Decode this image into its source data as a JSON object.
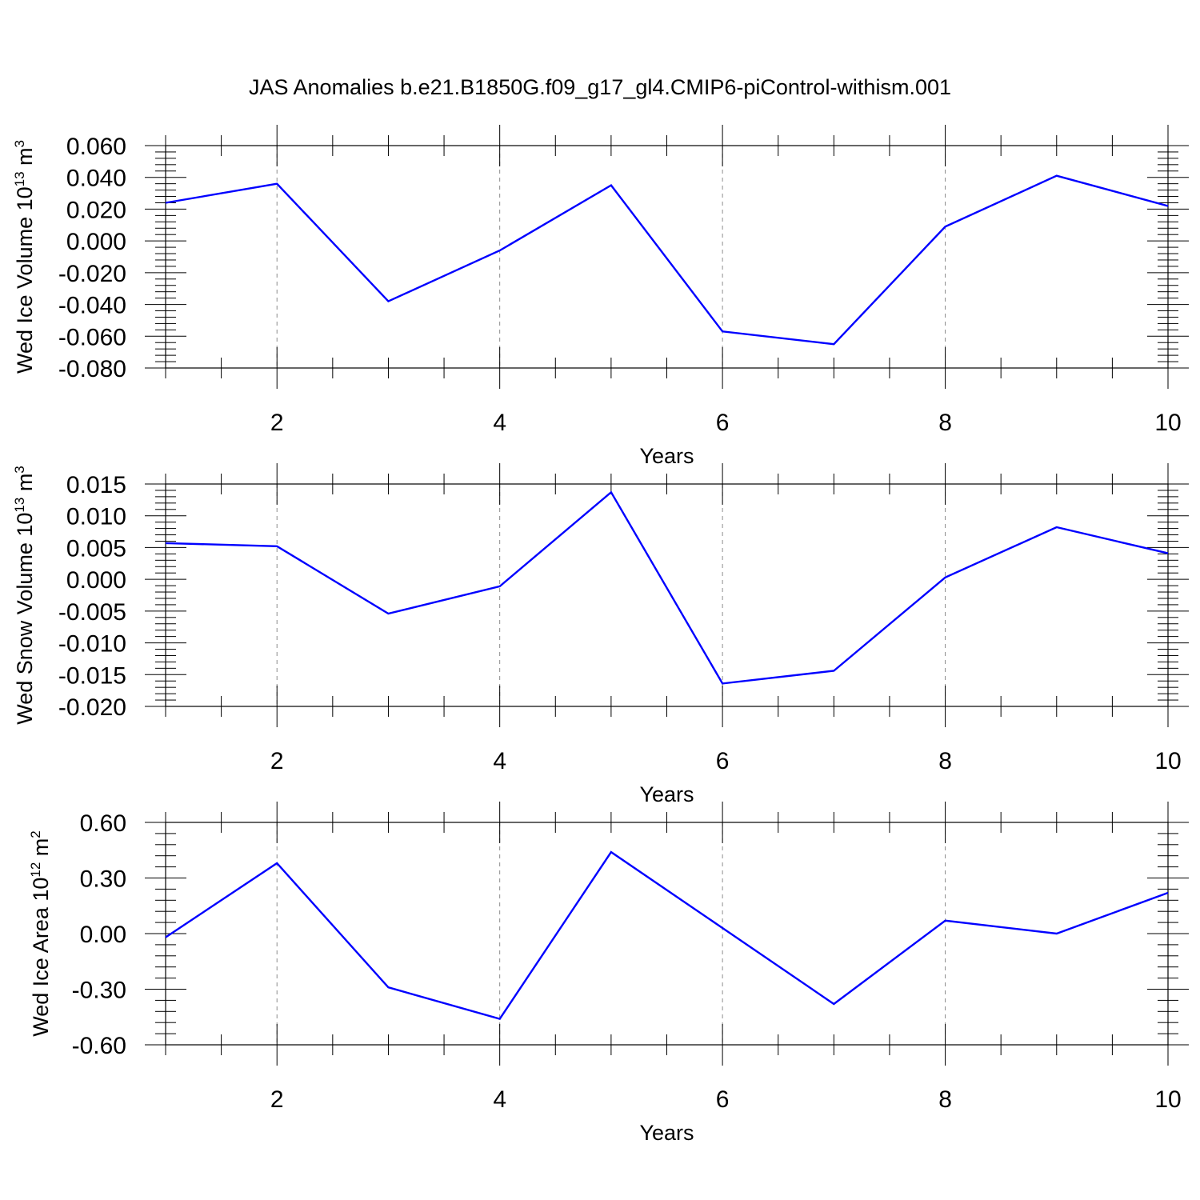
{
  "figure": {
    "title": "JAS Anomalies b.e21.B1850G.f09_g17_gl4.CMIP6-piControl-withism.001"
  },
  "chart_data": [
    {
      "type": "line",
      "xlabel": "Years",
      "ylabel": {
        "text": "Wed Ice Volume 10",
        "exponent": "13",
        "unit": " m",
        "unit_exponent": "3"
      },
      "xlim": [
        1,
        10
      ],
      "ylim": [
        -0.08,
        0.06
      ],
      "x_ticks": [
        2,
        4,
        6,
        8,
        10
      ],
      "x_tick_labels": [
        "2",
        "4",
        "6",
        "8",
        "10"
      ],
      "y_ticks": [
        0.06,
        0.04,
        0.02,
        0.0,
        -0.02,
        -0.04,
        -0.06,
        -0.08
      ],
      "y_tick_labels": [
        "0.060",
        "0.040",
        "0.020",
        "0.000",
        "-0.020",
        "-0.040",
        "-0.060",
        "-0.080"
      ],
      "grid": "vertical-dashed",
      "color": "#0000ff",
      "series": [
        {
          "x": [
            1,
            2,
            3,
            4,
            5,
            6,
            7,
            8,
            9,
            10
          ],
          "values": [
            0.024,
            0.036,
            -0.038,
            -0.006,
            0.035,
            -0.057,
            -0.065,
            0.009,
            0.041,
            0.022
          ]
        }
      ]
    },
    {
      "type": "line",
      "xlabel": "Years",
      "ylabel": {
        "text": "Wed Snow Volume 10",
        "exponent": "13",
        "unit": " m",
        "unit_exponent": "3"
      },
      "xlim": [
        1,
        10
      ],
      "ylim": [
        -0.02,
        0.015
      ],
      "x_ticks": [
        2,
        4,
        6,
        8,
        10
      ],
      "x_tick_labels": [
        "2",
        "4",
        "6",
        "8",
        "10"
      ],
      "y_ticks": [
        0.015,
        0.01,
        0.005,
        0.0,
        -0.005,
        -0.01,
        -0.015,
        -0.02
      ],
      "y_tick_labels": [
        "0.015",
        "0.010",
        "0.005",
        "0.000",
        "-0.005",
        "-0.010",
        "-0.015",
        "-0.020"
      ],
      "grid": "vertical-dashed",
      "color": "#0000ff",
      "series": [
        {
          "x": [
            1,
            2,
            3,
            4,
            5,
            6,
            7,
            8,
            9,
            10
          ],
          "values": [
            0.0057,
            0.0052,
            -0.0054,
            -0.0011,
            0.0137,
            -0.0164,
            -0.0144,
            0.0003,
            0.0082,
            0.0041
          ]
        }
      ]
    },
    {
      "type": "line",
      "xlabel": "Years",
      "ylabel": {
        "text": "Wed Ice Area 10",
        "exponent": "12",
        "unit": " m",
        "unit_exponent": "2"
      },
      "xlim": [
        1,
        10
      ],
      "ylim": [
        -0.6,
        0.6
      ],
      "x_ticks": [
        2,
        4,
        6,
        8,
        10
      ],
      "x_tick_labels": [
        "2",
        "4",
        "6",
        "8",
        "10"
      ],
      "y_ticks": [
        0.6,
        0.3,
        0.0,
        -0.3,
        -0.6
      ],
      "y_tick_labels": [
        "0.60",
        "0.30",
        "0.00",
        "-0.30",
        "-0.60"
      ],
      "grid": "vertical-dashed",
      "color": "#0000ff",
      "series": [
        {
          "x": [
            1,
            2,
            3,
            4,
            5,
            6,
            7,
            8,
            9,
            10
          ],
          "values": [
            -0.02,
            0.38,
            -0.29,
            -0.46,
            0.44,
            0.03,
            -0.38,
            0.07,
            0.0,
            0.22
          ]
        }
      ]
    }
  ]
}
